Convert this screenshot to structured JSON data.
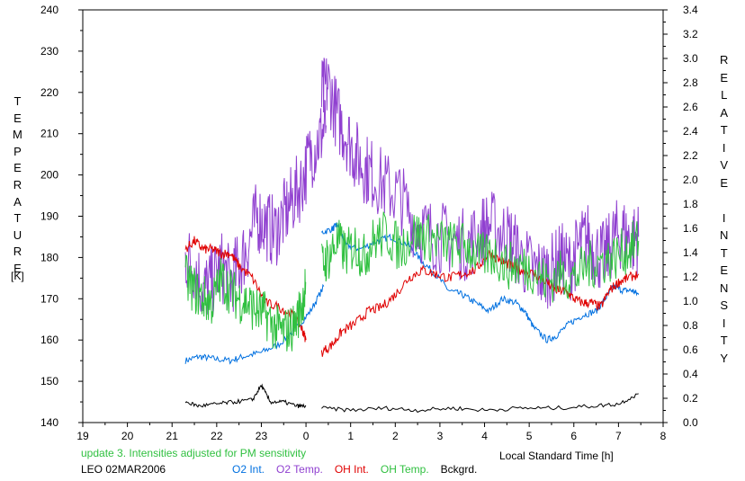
{
  "chart_data": {
    "type": "line",
    "left_axis_title": "TEMPERATURE",
    "left_axis_unit": "[K]",
    "right_axis_title": "RELATIVE INTENSITY",
    "xlabel": "Local Standard Time [h]",
    "x_ticks": [
      "19",
      "20",
      "21",
      "22",
      "23",
      "0",
      "1",
      "2",
      "3",
      "4",
      "5",
      "6",
      "7",
      "8"
    ],
    "xlim": [
      0,
      13
    ],
    "ylim_left": [
      140,
      240
    ],
    "y_ticks_left": [
      "140",
      "150",
      "160",
      "170",
      "180",
      "190",
      "200",
      "210",
      "220",
      "230",
      "240"
    ],
    "ylim_right": [
      0,
      3.4
    ],
    "y_ticks_right": [
      "0.0",
      "0.2",
      "0.4",
      "0.6",
      "0.8",
      "1.0",
      "1.2",
      "1.4",
      "1.6",
      "1.8",
      "2.0",
      "2.2",
      "2.4",
      "2.6",
      "2.8",
      "3.0",
      "3.2",
      "3.4"
    ],
    "x_units": "hours since 19:00 local standard time",
    "grid": false,
    "series": [
      {
        "name": "O2 Int.",
        "color": "#0070e0",
        "axis": "left",
        "segments": [
          [
            [
              2.3,
              155
            ],
            [
              2.6,
              156
            ],
            [
              2.9,
              155.5
            ],
            [
              3.3,
              155
            ],
            [
              3.6,
              156
            ],
            [
              4.0,
              157
            ],
            [
              4.4,
              159
            ],
            [
              4.8,
              163
            ],
            [
              5.1,
              167
            ],
            [
              5.4,
              173
            ]
          ],
          [
            [
              5.35,
              186
            ],
            [
              5.6,
              187
            ],
            [
              5.7,
              188
            ],
            [
              5.9,
              183
            ],
            [
              6.2,
              182
            ],
            [
              6.6,
              184
            ],
            [
              6.9,
              185
            ],
            [
              7.3,
              183
            ],
            [
              7.6,
              179
            ],
            [
              7.9,
              176
            ],
            [
              8.2,
              172
            ],
            [
              8.5,
              171
            ],
            [
              8.8,
              169
            ],
            [
              9.1,
              167
            ],
            [
              9.4,
              170
            ],
            [
              9.7,
              169
            ],
            [
              9.9,
              167
            ],
            [
              10.1,
              163
            ],
            [
              10.4,
              160
            ],
            [
              10.6,
              161
            ],
            [
              10.9,
              164
            ],
            [
              11.2,
              166
            ],
            [
              11.5,
              167
            ],
            [
              11.7,
              170
            ],
            [
              11.9,
              173
            ],
            [
              12.1,
              172
            ],
            [
              12.3,
              172
            ],
            [
              12.45,
              171
            ]
          ]
        ]
      },
      {
        "name": "O2 Temp.",
        "color": "#9040d0",
        "axis": "left",
        "segments": [
          [
            [
              2.3,
              180
            ],
            [
              2.5,
              178
            ],
            [
              2.7,
              172
            ],
            [
              2.9,
              174
            ],
            [
              3.1,
              178
            ],
            [
              3.3,
              174
            ],
            [
              3.5,
              178
            ],
            [
              3.7,
              183
            ],
            [
              3.9,
              190
            ],
            [
              4.1,
              188
            ],
            [
              4.3,
              186
            ],
            [
              4.5,
              190
            ],
            [
              4.7,
              194
            ],
            [
              4.9,
              198
            ],
            [
              5.1,
              205
            ],
            [
              5.3,
              209
            ],
            [
              5.45,
              212
            ]
          ],
          [
            [
              5.35,
              219
            ],
            [
              5.5,
              222
            ],
            [
              5.7,
              214
            ],
            [
              5.9,
              210
            ],
            [
              6.1,
              205
            ],
            [
              6.3,
              202
            ],
            [
              6.5,
              200
            ],
            [
              6.8,
              197
            ],
            [
              7.1,
              195
            ],
            [
              7.4,
              189
            ],
            [
              7.7,
              186
            ],
            [
              8.0,
              185
            ],
            [
              8.3,
              184
            ],
            [
              8.6,
              183
            ],
            [
              8.9,
              186
            ],
            [
              9.1,
              188
            ],
            [
              9.4,
              186
            ],
            [
              9.6,
              184
            ],
            [
              9.8,
              180
            ],
            [
              10.1,
              177
            ],
            [
              10.3,
              176
            ],
            [
              10.5,
              177
            ],
            [
              10.7,
              180
            ],
            [
              10.9,
              178
            ],
            [
              11.1,
              182
            ],
            [
              11.3,
              185
            ],
            [
              11.5,
              181
            ],
            [
              11.7,
              180
            ],
            [
              11.9,
              185
            ],
            [
              12.1,
              186
            ],
            [
              12.3,
              184
            ],
            [
              12.45,
              185
            ]
          ]
        ]
      },
      {
        "name": "OH Int.",
        "color": "#e00000",
        "axis": "left",
        "segments": [
          [
            [
              2.3,
              182
            ],
            [
              2.5,
              184
            ],
            [
              2.7,
              182
            ],
            [
              2.9,
              182
            ],
            [
              3.1,
              181
            ],
            [
              3.3,
              181
            ],
            [
              3.5,
              178
            ],
            [
              3.8,
              175
            ],
            [
              4.1,
              169
            ],
            [
              4.4,
              168
            ],
            [
              4.7,
              166
            ],
            [
              4.9,
              163
            ],
            [
              5.0,
              160
            ]
          ],
          [
            [
              5.35,
              157
            ],
            [
              5.6,
              159
            ],
            [
              5.8,
              162
            ],
            [
              6.1,
              164
            ],
            [
              6.4,
              167
            ],
            [
              6.7,
              168
            ],
            [
              7.0,
              171
            ],
            [
              7.3,
              175
            ],
            [
              7.6,
              177
            ],
            [
              7.9,
              176
            ],
            [
              8.2,
              175
            ],
            [
              8.5,
              176
            ],
            [
              8.8,
              177
            ],
            [
              9.1,
              181
            ],
            [
              9.4,
              179
            ],
            [
              9.6,
              178
            ],
            [
              9.8,
              177
            ],
            [
              10.1,
              176
            ],
            [
              10.4,
              174
            ],
            [
              10.6,
              172
            ],
            [
              10.8,
              172
            ],
            [
              11.0,
              170
            ],
            [
              11.2,
              169
            ],
            [
              11.4,
              169
            ],
            [
              11.6,
              168
            ],
            [
              11.8,
              172
            ],
            [
              12.0,
              174
            ],
            [
              12.2,
              175
            ],
            [
              12.45,
              176
            ]
          ]
        ]
      },
      {
        "name": "OH Temp.",
        "color": "#30c040",
        "axis": "left",
        "segments": [
          [
            [
              2.3,
              175
            ],
            [
              2.5,
              172
            ],
            [
              2.7,
              170
            ],
            [
              2.9,
              169
            ],
            [
              3.1,
              175
            ],
            [
              3.3,
              172
            ],
            [
              3.5,
              170
            ],
            [
              3.7,
              169
            ],
            [
              3.9,
              167
            ],
            [
              4.1,
              166
            ],
            [
              4.3,
              163
            ],
            [
              4.5,
              162
            ],
            [
              4.7,
              163
            ],
            [
              4.9,
              168
            ],
            [
              5.0,
              174
            ]
          ],
          [
            [
              5.35,
              178
            ],
            [
              5.5,
              180
            ],
            [
              5.7,
              184
            ],
            [
              5.9,
              181
            ],
            [
              6.1,
              183
            ],
            [
              6.3,
              180
            ],
            [
              6.5,
              184
            ],
            [
              6.8,
              186
            ],
            [
              7.1,
              182
            ],
            [
              7.4,
              186
            ],
            [
              7.7,
              185
            ],
            [
              8.0,
              184
            ],
            [
              8.3,
              183
            ],
            [
              8.6,
              183
            ],
            [
              8.9,
              180
            ],
            [
              9.2,
              181
            ],
            [
              9.5,
              178
            ],
            [
              9.8,
              178
            ],
            [
              10.1,
              177
            ],
            [
              10.4,
              174
            ],
            [
              10.7,
              176
            ],
            [
              11.0,
              175
            ],
            [
              11.3,
              178
            ],
            [
              11.6,
              179
            ],
            [
              11.9,
              180
            ],
            [
              12.2,
              182
            ],
            [
              12.45,
              184
            ]
          ]
        ]
      },
      {
        "name": "Bckgrd.",
        "color": "#000000",
        "axis": "left",
        "segments": [
          [
            [
              2.3,
              145
            ],
            [
              2.6,
              144
            ],
            [
              3.0,
              144.5
            ],
            [
              3.4,
              145
            ],
            [
              3.8,
              145.5
            ],
            [
              4.0,
              149
            ],
            [
              4.2,
              145
            ],
            [
              4.5,
              145
            ],
            [
              4.8,
              144
            ],
            [
              5.0,
              144
            ]
          ],
          [
            [
              5.35,
              143.5
            ],
            [
              6.0,
              143
            ],
            [
              6.8,
              143.5
            ],
            [
              7.5,
              143
            ],
            [
              8.3,
              143.5
            ],
            [
              9.0,
              143
            ],
            [
              9.8,
              143.5
            ],
            [
              10.6,
              143.5
            ],
            [
              11.4,
              144
            ],
            [
              12.0,
              144.5
            ],
            [
              12.45,
              147
            ]
          ]
        ]
      }
    ]
  },
  "notes": {
    "update_line": "update 3. Intensities adjusted for PM sensitivity",
    "update_color": "#30c040",
    "station_date": "LEO 02MAR2006"
  }
}
